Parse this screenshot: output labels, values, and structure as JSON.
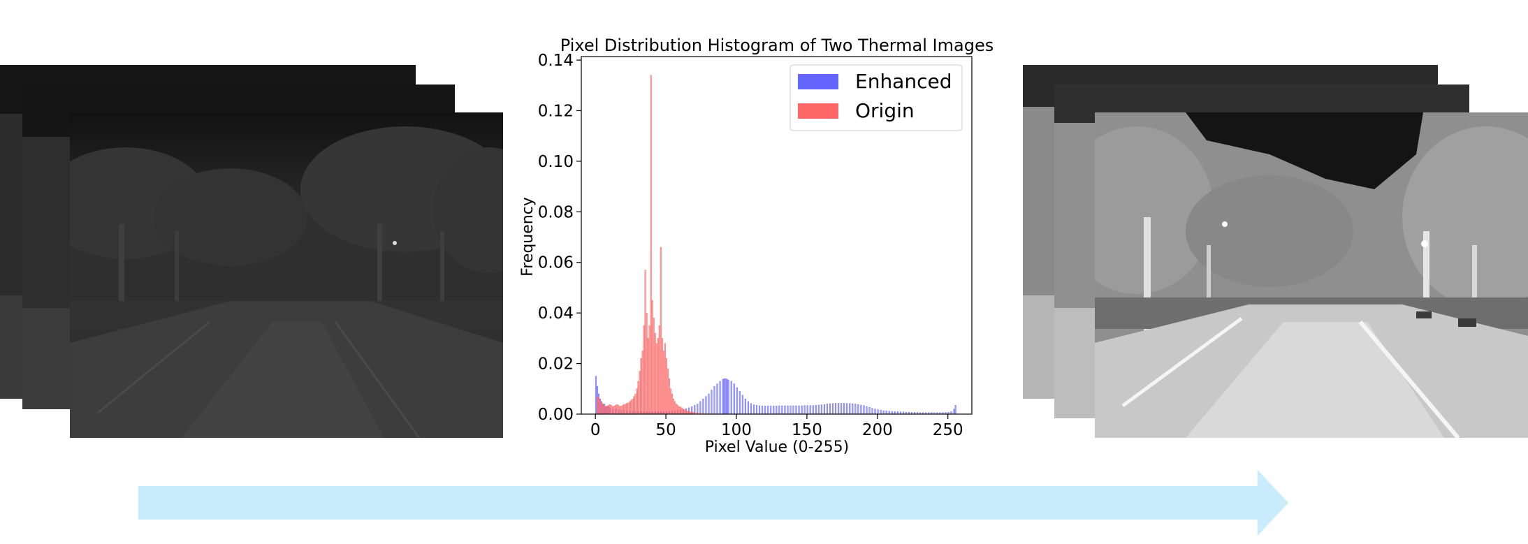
{
  "chart_data": {
    "type": "bar",
    "title": "Pixel Distribution Histogram of Two Thermal Images",
    "xlabel": "Pixel Value (0-255)",
    "ylabel": "Frequency",
    "xlim": [
      -10,
      267
    ],
    "ylim": [
      0,
      0.1414
    ],
    "xticks": [
      "0",
      "50",
      "100",
      "150",
      "200",
      "250"
    ],
    "yticks": [
      "0.00",
      "0.02",
      "0.04",
      "0.06",
      "0.08",
      "0.10",
      "0.12",
      "0.14"
    ],
    "legend_position": "top-right",
    "series": [
      {
        "name": "Enhanced",
        "color": "#6666ff",
        "bins": [
          [
            0,
            0.015
          ],
          [
            1,
            0.011
          ],
          [
            2,
            0.008
          ],
          [
            3,
            0.006
          ],
          [
            4,
            0.005
          ],
          [
            5,
            0.004
          ],
          [
            6,
            0.004
          ],
          [
            7,
            0.003
          ],
          [
            8,
            0.003
          ],
          [
            9,
            0.003
          ],
          [
            10,
            0.0025
          ],
          [
            12,
            0.002
          ],
          [
            14,
            0.002
          ],
          [
            16,
            0.0018
          ],
          [
            18,
            0.0015
          ],
          [
            20,
            0.0015
          ],
          [
            22,
            0.0013
          ],
          [
            24,
            0.0012
          ],
          [
            26,
            0.0012
          ],
          [
            28,
            0.0011
          ],
          [
            30,
            0.0011
          ],
          [
            32,
            0.001
          ],
          [
            34,
            0.001
          ],
          [
            36,
            0.001
          ],
          [
            38,
            0.001
          ],
          [
            40,
            0.001
          ],
          [
            42,
            0.001
          ],
          [
            44,
            0.001
          ],
          [
            46,
            0.001
          ],
          [
            48,
            0.001
          ],
          [
            50,
            0.001
          ],
          [
            52,
            0.0011
          ],
          [
            54,
            0.0012
          ],
          [
            56,
            0.0013
          ],
          [
            58,
            0.0015
          ],
          [
            60,
            0.0018
          ],
          [
            62,
            0.002
          ],
          [
            64,
            0.0022
          ],
          [
            66,
            0.0025
          ],
          [
            68,
            0.003
          ],
          [
            70,
            0.0035
          ],
          [
            72,
            0.004
          ],
          [
            74,
            0.005
          ],
          [
            76,
            0.006
          ],
          [
            78,
            0.007
          ],
          [
            80,
            0.008
          ],
          [
            82,
            0.0095
          ],
          [
            84,
            0.011
          ],
          [
            86,
            0.012
          ],
          [
            88,
            0.013
          ],
          [
            90,
            0.0138
          ],
          [
            91,
            0.014
          ],
          [
            92,
            0.014
          ],
          [
            93,
            0.0138
          ],
          [
            94,
            0.0135
          ],
          [
            96,
            0.013
          ],
          [
            98,
            0.012
          ],
          [
            100,
            0.0105
          ],
          [
            102,
            0.009
          ],
          [
            104,
            0.0075
          ],
          [
            106,
            0.006
          ],
          [
            108,
            0.005
          ],
          [
            110,
            0.0042
          ],
          [
            112,
            0.0037
          ],
          [
            114,
            0.0035
          ],
          [
            116,
            0.0033
          ],
          [
            118,
            0.0032
          ],
          [
            120,
            0.0032
          ],
          [
            122,
            0.0032
          ],
          [
            124,
            0.0032
          ],
          [
            126,
            0.0032
          ],
          [
            128,
            0.0032
          ],
          [
            130,
            0.0033
          ],
          [
            132,
            0.0033
          ],
          [
            134,
            0.0033
          ],
          [
            136,
            0.0033
          ],
          [
            138,
            0.0033
          ],
          [
            140,
            0.0033
          ],
          [
            142,
            0.0033
          ],
          [
            144,
            0.0033
          ],
          [
            146,
            0.0033
          ],
          [
            148,
            0.0034
          ],
          [
            150,
            0.0034
          ],
          [
            152,
            0.0034
          ],
          [
            154,
            0.0034
          ],
          [
            156,
            0.0035
          ],
          [
            158,
            0.0036
          ],
          [
            160,
            0.0037
          ],
          [
            162,
            0.0038
          ],
          [
            164,
            0.004
          ],
          [
            166,
            0.0041
          ],
          [
            168,
            0.0042
          ],
          [
            170,
            0.0043
          ],
          [
            172,
            0.0043
          ],
          [
            174,
            0.0043
          ],
          [
            176,
            0.0043
          ],
          [
            178,
            0.0042
          ],
          [
            180,
            0.0042
          ],
          [
            182,
            0.0041
          ],
          [
            184,
            0.004
          ],
          [
            186,
            0.0038
          ],
          [
            188,
            0.0036
          ],
          [
            190,
            0.0034
          ],
          [
            192,
            0.003
          ],
          [
            194,
            0.0027
          ],
          [
            196,
            0.0023
          ],
          [
            198,
            0.002
          ],
          [
            200,
            0.0018
          ],
          [
            202,
            0.0016
          ],
          [
            204,
            0.0014
          ],
          [
            206,
            0.0013
          ],
          [
            208,
            0.0012
          ],
          [
            210,
            0.0011
          ],
          [
            212,
            0.001
          ],
          [
            214,
            0.001
          ],
          [
            216,
            0.0009
          ],
          [
            218,
            0.0009
          ],
          [
            220,
            0.0008
          ],
          [
            222,
            0.0008
          ],
          [
            224,
            0.0007
          ],
          [
            226,
            0.0007
          ],
          [
            228,
            0.0007
          ],
          [
            230,
            0.0006
          ],
          [
            232,
            0.0006
          ],
          [
            234,
            0.0006
          ],
          [
            236,
            0.0006
          ],
          [
            238,
            0.0006
          ],
          [
            240,
            0.0006
          ],
          [
            242,
            0.0006
          ],
          [
            244,
            0.0006
          ],
          [
            246,
            0.0006
          ],
          [
            248,
            0.0007
          ],
          [
            250,
            0.0008
          ],
          [
            252,
            0.001
          ],
          [
            254,
            0.002
          ],
          [
            255,
            0.0035
          ]
        ]
      },
      {
        "name": "Origin",
        "color": "#ff6666",
        "bins": [
          [
            1,
            0.007
          ],
          [
            2,
            0.0065
          ],
          [
            3,
            0.0055
          ],
          [
            4,
            0.0045
          ],
          [
            5,
            0.004
          ],
          [
            6,
            0.0035
          ],
          [
            7,
            0.003
          ],
          [
            8,
            0.0032
          ],
          [
            9,
            0.0035
          ],
          [
            10,
            0.0038
          ],
          [
            11,
            0.0035
          ],
          [
            12,
            0.003
          ],
          [
            13,
            0.0032
          ],
          [
            14,
            0.0035
          ],
          [
            15,
            0.0038
          ],
          [
            16,
            0.0035
          ],
          [
            17,
            0.003
          ],
          [
            18,
            0.0032
          ],
          [
            19,
            0.0035
          ],
          [
            20,
            0.0038
          ],
          [
            21,
            0.004
          ],
          [
            22,
            0.0043
          ],
          [
            23,
            0.0045
          ],
          [
            24,
            0.005
          ],
          [
            25,
            0.0055
          ],
          [
            26,
            0.006
          ],
          [
            27,
            0.007
          ],
          [
            28,
            0.008
          ],
          [
            29,
            0.01
          ],
          [
            30,
            0.013
          ],
          [
            31,
            0.017
          ],
          [
            32,
            0.022
          ],
          [
            33,
            0.025
          ],
          [
            34,
            0.035
          ],
          [
            35,
            0.057
          ],
          [
            36,
            0.04
          ],
          [
            37,
            0.03
          ],
          [
            38,
            0.035
          ],
          [
            39,
            0.134
          ],
          [
            40,
            0.045
          ],
          [
            41,
            0.038
          ],
          [
            42,
            0.032
          ],
          [
            43,
            0.028
          ],
          [
            44,
            0.03
          ],
          [
            45,
            0.035
          ],
          [
            46,
            0.066
          ],
          [
            47,
            0.03
          ],
          [
            48,
            0.025
          ],
          [
            49,
            0.028
          ],
          [
            50,
            0.022
          ],
          [
            51,
            0.018
          ],
          [
            52,
            0.014
          ],
          [
            53,
            0.01
          ],
          [
            54,
            0.008
          ],
          [
            55,
            0.006
          ],
          [
            56,
            0.005
          ],
          [
            57,
            0.004
          ],
          [
            58,
            0.0035
          ],
          [
            59,
            0.003
          ],
          [
            60,
            0.0028
          ],
          [
            61,
            0.0025
          ],
          [
            62,
            0.002
          ],
          [
            63,
            0.0017
          ],
          [
            64,
            0.0014
          ],
          [
            65,
            0.0012
          ],
          [
            66,
            0.001
          ],
          [
            67,
            0.0009
          ],
          [
            68,
            0.0008
          ],
          [
            69,
            0.0007
          ],
          [
            70,
            0.0006
          ],
          [
            72,
            0.0005
          ],
          [
            74,
            0.0004
          ],
          [
            76,
            0.0003
          ],
          [
            78,
            0.0002
          ],
          [
            80,
            0.0002
          ]
        ]
      }
    ]
  },
  "images": {
    "original_stack": "original-thermal-image-stack",
    "enhanced_stack": "enhanced-thermal-image-stack",
    "arrow_color": "#c8ecfb"
  }
}
